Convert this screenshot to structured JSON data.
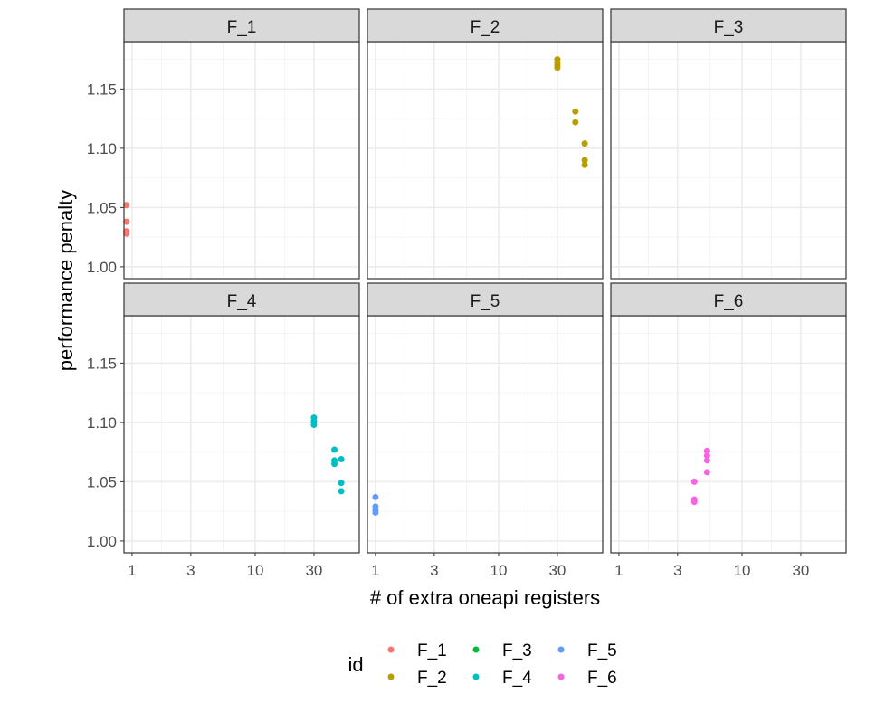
{
  "chart_data": {
    "type": "scatter",
    "facets": [
      "F_1",
      "F_2",
      "F_3",
      "F_4",
      "F_5",
      "F_6"
    ],
    "xlabel": "# of extra oneapi registers",
    "ylabel": "performance penalty",
    "x_scale": "log10",
    "xlim": [
      0.86,
      70
    ],
    "ylim": [
      0.99,
      1.19
    ],
    "x_ticks": [
      1,
      3,
      10,
      30
    ],
    "x_tick_labels": [
      "1",
      "3",
      "10",
      "30"
    ],
    "y_ticks": [
      1.0,
      1.05,
      1.1,
      1.15
    ],
    "y_tick_labels": [
      "1.00",
      "1.05",
      "1.10",
      "1.15"
    ],
    "grid": true,
    "legend": {
      "title": "id",
      "position": "bottom",
      "entries": [
        "F_1",
        "F_2",
        "F_3",
        "F_4",
        "F_5",
        "F_6"
      ]
    },
    "colors": {
      "F_1": "#F8766D",
      "F_2": "#B79F00",
      "F_3": "#00BA38",
      "F_4": "#00BFC4",
      "F_5": "#619CFF",
      "F_6": "#F564E3"
    },
    "series": [
      {
        "name": "F_1",
        "points": [
          [
            0.9,
            1.052
          ],
          [
            0.9,
            1.038
          ],
          [
            0.9,
            1.03
          ],
          [
            0.9,
            1.028
          ]
        ]
      },
      {
        "name": "F_2",
        "points": [
          [
            30,
            1.175
          ],
          [
            30,
            1.172
          ],
          [
            30,
            1.17
          ],
          [
            30,
            1.168
          ],
          [
            42,
            1.131
          ],
          [
            42,
            1.122
          ],
          [
            50,
            1.104
          ],
          [
            50,
            1.09
          ],
          [
            50,
            1.086
          ]
        ]
      },
      {
        "name": "F_3",
        "points": []
      },
      {
        "name": "F_4",
        "points": [
          [
            30,
            1.104
          ],
          [
            30,
            1.101
          ],
          [
            30,
            1.098
          ],
          [
            44,
            1.077
          ],
          [
            44,
            1.068
          ],
          [
            44,
            1.065
          ],
          [
            50,
            1.069
          ],
          [
            50,
            1.049
          ],
          [
            50,
            1.042
          ]
        ]
      },
      {
        "name": "F_5",
        "points": [
          [
            1,
            1.037
          ],
          [
            1,
            1.029
          ],
          [
            1,
            1.026
          ],
          [
            1,
            1.024
          ]
        ]
      },
      {
        "name": "F_6",
        "points": [
          [
            4.1,
            1.05
          ],
          [
            4.1,
            1.035
          ],
          [
            4.1,
            1.033
          ],
          [
            5.2,
            1.076
          ],
          [
            5.2,
            1.072
          ],
          [
            5.2,
            1.068
          ],
          [
            5.2,
            1.058
          ]
        ]
      }
    ]
  }
}
